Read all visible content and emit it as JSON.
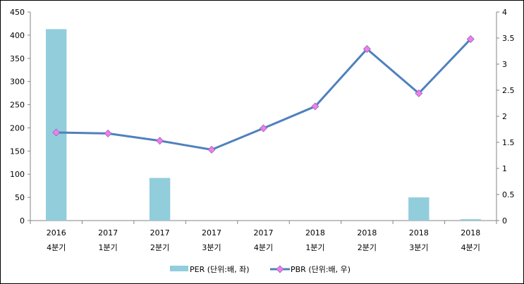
{
  "chart_data": {
    "type": "bar+line",
    "categories": [
      [
        "2016",
        "4분기"
      ],
      [
        "2017",
        "1분기"
      ],
      [
        "2017",
        "2분기"
      ],
      [
        "2017",
        "3분기"
      ],
      [
        "2017",
        "4분기"
      ],
      [
        "2018",
        "1분기"
      ],
      [
        "2018",
        "2분기"
      ],
      [
        "2018",
        "3분기"
      ],
      [
        "2018",
        "4분기"
      ]
    ],
    "series": [
      {
        "name": "PER (단위:배, 좌)",
        "type": "bar",
        "axis": "left",
        "color": "#92CDDC",
        "values": [
          413,
          0,
          92,
          0,
          0,
          0,
          0,
          50,
          3
        ]
      },
      {
        "name": "PBR (단위:배, 우)",
        "type": "line",
        "axis": "right",
        "color": "#4F81BD",
        "marker_color": "#F07CF0",
        "values": [
          1.69,
          1.67,
          1.53,
          1.36,
          1.77,
          2.19,
          3.29,
          2.44,
          3.48
        ]
      }
    ],
    "left_axis": {
      "ylim": [
        0,
        450
      ],
      "ticks": [
        "0",
        "50",
        "100",
        "150",
        "200",
        "250",
        "300",
        "350",
        "400",
        "450"
      ]
    },
    "right_axis": {
      "ylim": [
        0,
        4
      ],
      "ticks": [
        "0",
        "0.5",
        "1",
        "1.5",
        "2",
        "2.5",
        "3",
        "3.5",
        "4"
      ]
    },
    "grid": false,
    "legend": "bottom"
  }
}
